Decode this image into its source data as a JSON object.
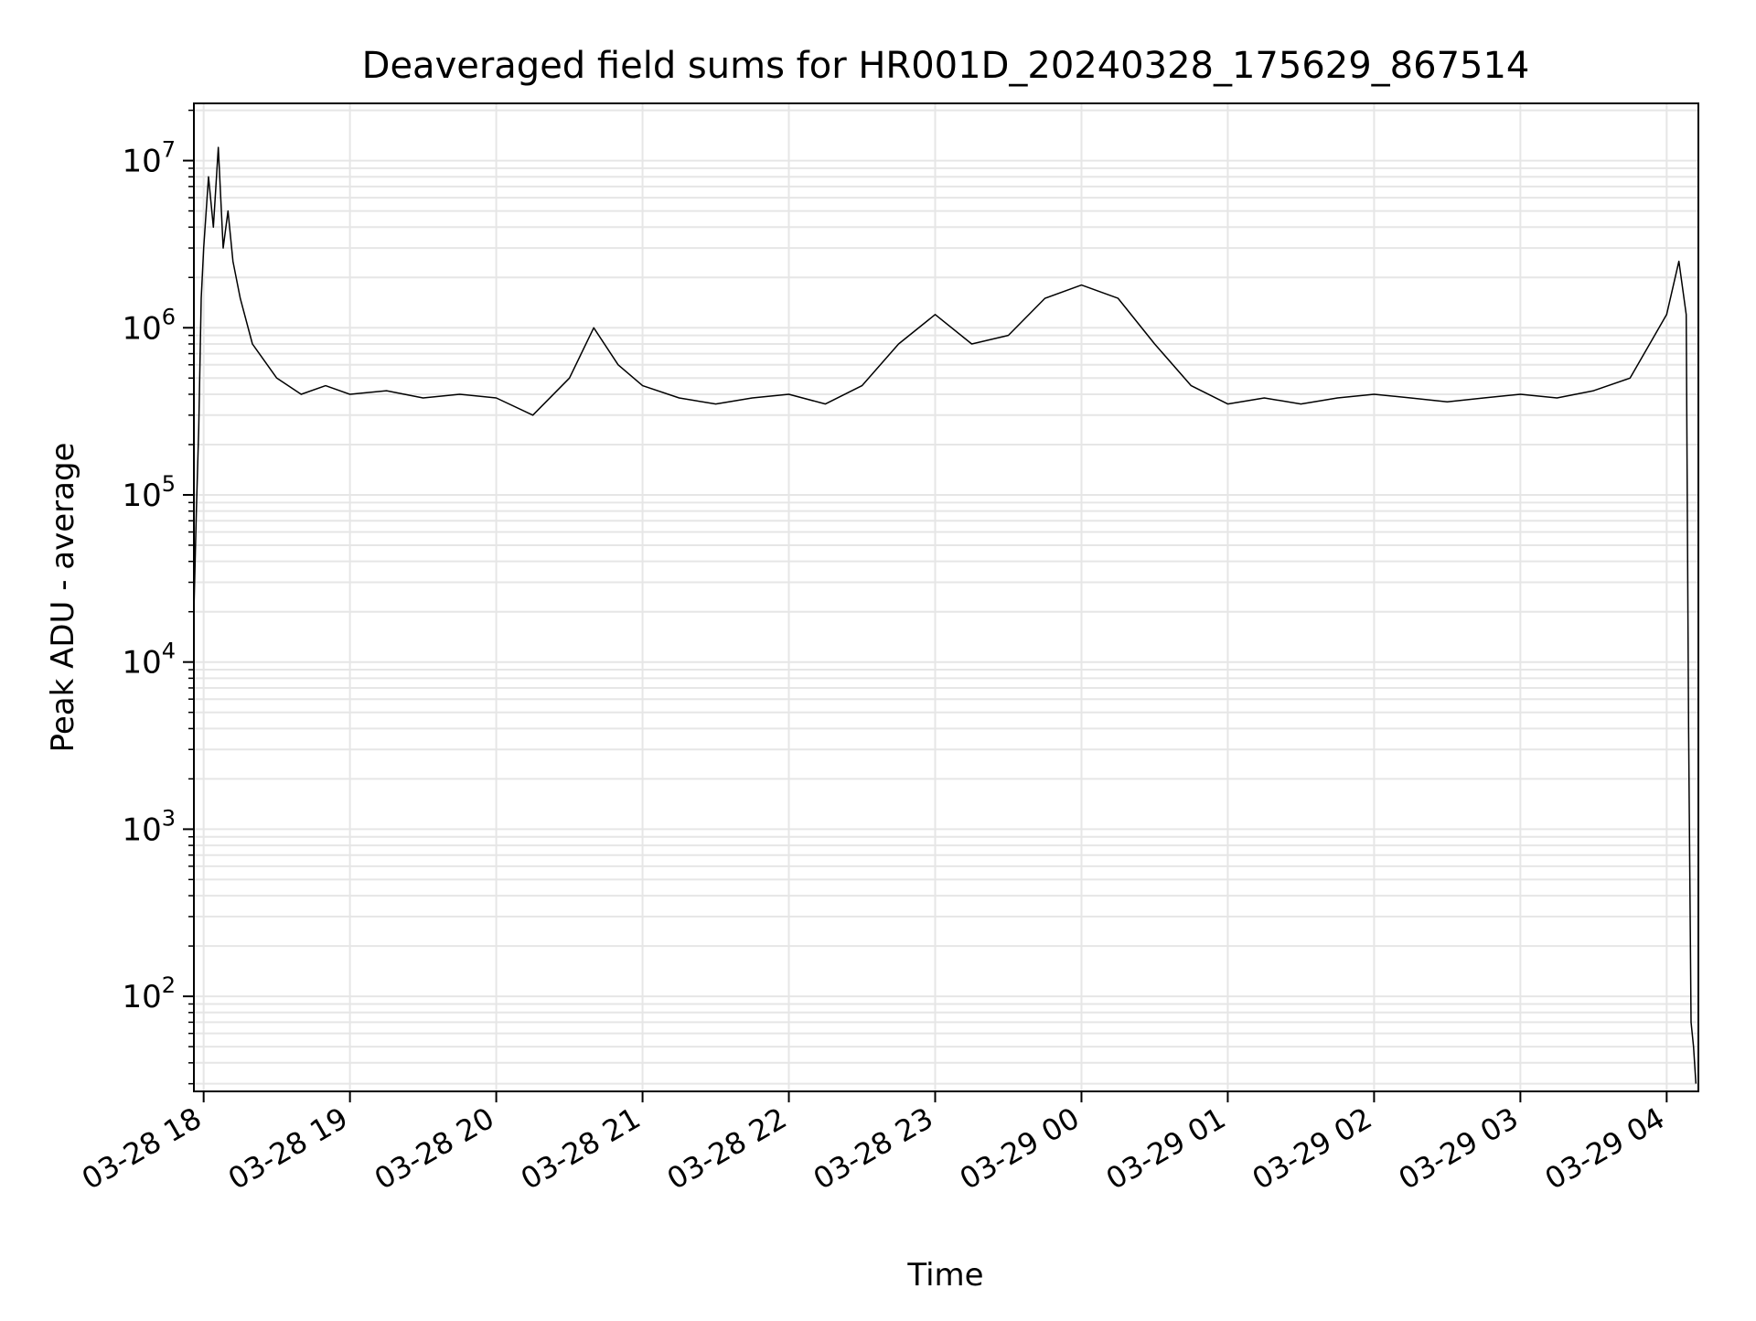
{
  "chart_data": {
    "type": "line",
    "title": "Deaveraged field sums for HR001D_20240328_175629_867514",
    "xlabel": "Time",
    "ylabel": "Peak ADU - average",
    "xscale": "time",
    "yscale": "log",
    "xlim": [
      "2024-03-28 17:56",
      "2024-03-29 04:13"
    ],
    "ylim": [
      27,
      22000000
    ],
    "grid": true,
    "legend": "none",
    "line_color": "#000000",
    "x_ticks": [
      "03-28 18",
      "03-28 19",
      "03-28 20",
      "03-28 21",
      "03-28 22",
      "03-28 23",
      "03-29 00",
      "03-29 01",
      "03-29 02",
      "03-29 03",
      "03-29 04"
    ],
    "y_ticks": [
      {
        "value": 100,
        "base": "10",
        "exp": "2"
      },
      {
        "value": 1000,
        "base": "10",
        "exp": "3"
      },
      {
        "value": 10000,
        "base": "10",
        "exp": "4"
      },
      {
        "value": 100000,
        "base": "10",
        "exp": "5"
      },
      {
        "value": 1000000,
        "base": "10",
        "exp": "6"
      },
      {
        "value": 10000000,
        "base": "10",
        "exp": "7"
      }
    ],
    "series": [
      {
        "x": [
          "2024-03-28 17:56",
          "2024-03-28 17:57",
          "2024-03-28 17:58",
          "2024-03-28 17:59",
          "2024-03-28 18:00",
          "2024-03-28 18:02",
          "2024-03-28 18:04",
          "2024-03-28 18:06",
          "2024-03-28 18:08",
          "2024-03-28 18:10",
          "2024-03-28 18:12",
          "2024-03-28 18:15",
          "2024-03-28 18:20",
          "2024-03-28 18:30",
          "2024-03-28 18:40",
          "2024-03-28 18:50",
          "2024-03-28 19:00",
          "2024-03-28 19:15",
          "2024-03-28 19:30",
          "2024-03-28 19:45",
          "2024-03-28 20:00",
          "2024-03-28 20:15",
          "2024-03-28 20:30",
          "2024-03-28 20:40",
          "2024-03-28 20:50",
          "2024-03-28 21:00",
          "2024-03-28 21:15",
          "2024-03-28 21:30",
          "2024-03-28 21:45",
          "2024-03-28 22:00",
          "2024-03-28 22:15",
          "2024-03-28 22:30",
          "2024-03-28 22:45",
          "2024-03-28 23:00",
          "2024-03-28 23:15",
          "2024-03-28 23:30",
          "2024-03-28 23:45",
          "2024-03-29 00:00",
          "2024-03-29 00:15",
          "2024-03-29 00:30",
          "2024-03-29 00:45",
          "2024-03-29 01:00",
          "2024-03-29 01:15",
          "2024-03-29 01:30",
          "2024-03-29 01:45",
          "2024-03-29 02:00",
          "2024-03-29 02:15",
          "2024-03-29 02:30",
          "2024-03-29 02:45",
          "2024-03-29 03:00",
          "2024-03-29 03:15",
          "2024-03-29 03:30",
          "2024-03-29 03:45",
          "2024-03-29 04:00",
          "2024-03-29 04:05",
          "2024-03-29 04:08",
          "2024-03-29 04:09",
          "2024-03-29 04:10",
          "2024-03-29 04:11",
          "2024-03-29 04:12"
        ],
        "y": [
          20000,
          80000,
          250000,
          1500000,
          3000000,
          8000000,
          4000000,
          12000000,
          3000000,
          5000000,
          2500000,
          1500000,
          800000,
          500000,
          400000,
          450000,
          400000,
          420000,
          380000,
          400000,
          380000,
          300000,
          500000,
          1000000,
          600000,
          450000,
          380000,
          350000,
          380000,
          400000,
          350000,
          450000,
          800000,
          1200000,
          800000,
          900000,
          1500000,
          1800000,
          1500000,
          800000,
          450000,
          350000,
          380000,
          350000,
          380000,
          400000,
          380000,
          360000,
          380000,
          400000,
          380000,
          420000,
          500000,
          1200000,
          2500000,
          1200000,
          4000,
          70,
          50,
          30
        ]
      }
    ]
  }
}
